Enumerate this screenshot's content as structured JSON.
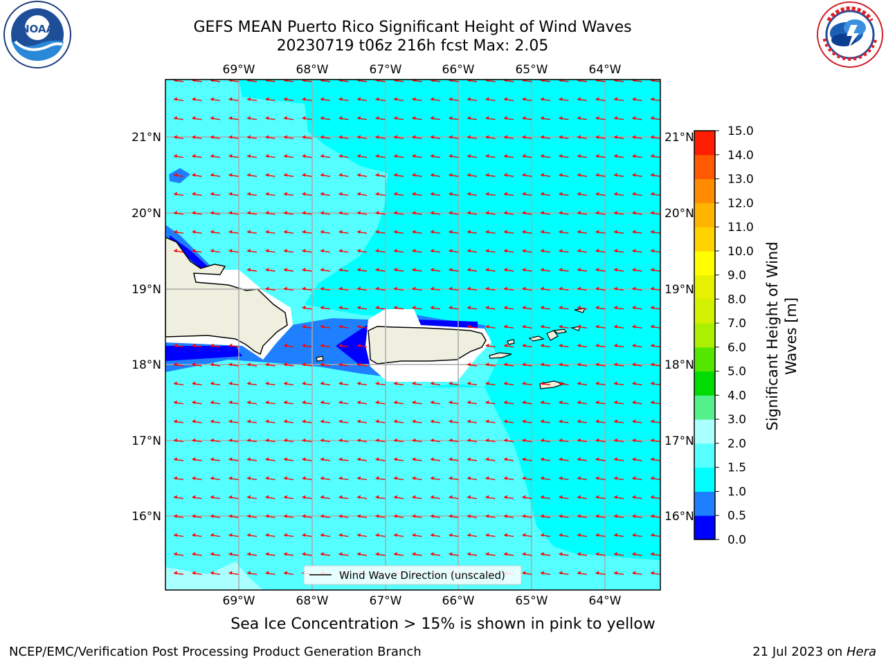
{
  "title_line1": "GEFS MEAN Puerto Rico Significant Height of Wind Waves",
  "title_line2": "20230719 t06z 216h fcst   Max: 2.05",
  "subtitle": "Sea Ice Concentration > 15% is shown in pink to yellow",
  "footer_left": "NCEP/EMC/Verification Post Processing Product Generation Branch",
  "footer_date": "21 Jul 2023 on ",
  "footer_machine": "Hera",
  "logos": {
    "noaa": {
      "text": "NOAA",
      "ring_text": "NATIONAL OCEANIC AND ATMOSPHERIC ADMINISTRATION · U.S. DEPARTMENT OF COMMERCE"
    },
    "nws": {
      "ring_text": "NATIONAL WEATHER SERVICE"
    }
  },
  "map": {
    "lon_labels": [
      "69°W",
      "68°W",
      "67°W",
      "66°W",
      "65°W",
      "64°W"
    ],
    "lat_labels": [
      "21°N",
      "20°N",
      "19°N",
      "18°N",
      "17°N",
      "16°N"
    ],
    "lon_range": [
      -70.0,
      -63.25
    ],
    "lat_range": [
      15.0,
      21.75
    ],
    "legend_label": "Wind Wave Direction (unscaled)",
    "arrow_color": "#ff0000",
    "land_color": "#efefdf",
    "arrow_direction": "toward west"
  },
  "colorbar": {
    "label_line1": "Significant Height of Wind",
    "label_line2": "Waves [m]",
    "ticks": [
      "0.0",
      "0.5",
      "1.0",
      "1.5",
      "2.0",
      "3.0",
      "4.0",
      "5.0",
      "6.0",
      "7.0",
      "8.0",
      "9.0",
      "10.0",
      "11.0",
      "12.0",
      "13.0",
      "14.0",
      "15.0"
    ],
    "colors": [
      "#0000ff",
      "#1e80ff",
      "#00ffff",
      "#55ffff",
      "#aaffff",
      "#55f08c",
      "#00dc00",
      "#55e600",
      "#aaf000",
      "#d2f000",
      "#e6f000",
      "#ffff00",
      "#ffd200",
      "#ffb400",
      "#ff8c00",
      "#ff5a00",
      "#ff1e00"
    ]
  }
}
